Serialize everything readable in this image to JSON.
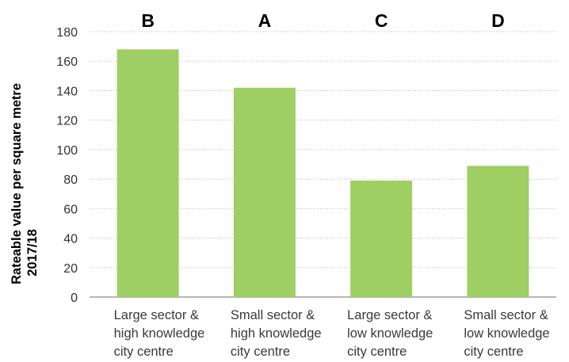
{
  "chart_data": {
    "type": "bar",
    "categories": [
      [
        "Large sector &",
        "high knowledge",
        "city centre"
      ],
      [
        "Small sector &",
        "high knowledge",
        "city centre"
      ],
      [
        "Large sector &",
        "low knowledge",
        "city centre"
      ],
      [
        "Small sector &",
        "low knowledge",
        "city centre"
      ]
    ],
    "bar_letters": [
      "B",
      "A",
      "C",
      "D"
    ],
    "values": [
      168,
      142,
      79,
      89
    ],
    "ylabel": [
      "Rateable value per square metre",
      "2017/18"
    ],
    "ylim": [
      0,
      180
    ],
    "yticks": [
      0,
      20,
      40,
      60,
      80,
      100,
      120,
      140,
      160,
      180
    ],
    "grid": "horizontal dotted",
    "bar_color": "#9fce63"
  }
}
